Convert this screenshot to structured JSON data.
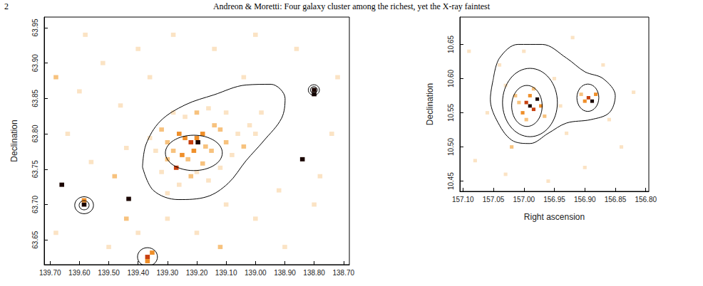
{
  "header": {
    "page": "2",
    "title": "Andreon & Moretti: Four galaxy cluster among the richest, yet the X-ray faintest"
  },
  "chart_data": [
    {
      "type": "heatmap",
      "ylabel": "Declination",
      "xlim": [
        139.72,
        138.68
      ],
      "ylim": [
        63.615,
        63.965
      ],
      "xticks": [
        {
          "value": 139.7,
          "label": "139.70"
        },
        {
          "value": 139.6,
          "label": "139.60"
        },
        {
          "value": 139.5,
          "label": "139.50"
        },
        {
          "value": 139.4,
          "label": "139.40"
        },
        {
          "value": 139.3,
          "label": "139.30"
        },
        {
          "value": 139.2,
          "label": "139.20"
        },
        {
          "value": 139.1,
          "label": "139.10"
        },
        {
          "value": 139.0,
          "label": "139.00"
        },
        {
          "value": 138.9,
          "label": "138.90"
        },
        {
          "value": 138.8,
          "label": "138.80"
        },
        {
          "value": 138.7,
          "label": "138.70"
        }
      ],
      "yticks": [
        63.65,
        {
          "value": 63.7,
          "label": "63.70"
        },
        63.75,
        {
          "value": 63.8,
          "label": "63.80"
        },
        63.85,
        {
          "value": 63.9,
          "label": "63.90"
        },
        63.95
      ],
      "grid": false,
      "zlim": [
        1,
        5
      ],
      "colors": [
        "#fbe3c4",
        "#f7c27e",
        "#ef8f2a",
        "#c8400e",
        "#1a0500"
      ],
      "cell_size": [
        0.016,
        0.006
      ],
      "cells": [
        [
          139.26,
          63.8,
          3
        ],
        [
          139.24,
          63.794,
          3
        ],
        [
          139.22,
          63.788,
          4
        ],
        [
          139.2,
          63.794,
          3
        ],
        [
          139.18,
          63.8,
          3
        ],
        [
          139.196,
          63.788,
          5
        ],
        [
          139.28,
          63.776,
          2
        ],
        [
          139.25,
          63.77,
          3
        ],
        [
          139.23,
          63.764,
          2
        ],
        [
          139.21,
          63.776,
          3
        ],
        [
          139.17,
          63.782,
          2
        ],
        [
          139.15,
          63.776,
          2
        ],
        [
          139.27,
          63.752,
          4
        ],
        [
          139.3,
          63.788,
          2
        ],
        [
          139.32,
          63.806,
          2
        ],
        [
          139.12,
          63.806,
          2
        ],
        [
          139.1,
          63.788,
          2
        ],
        [
          139.14,
          63.812,
          2
        ],
        [
          139.3,
          63.764,
          2
        ],
        [
          139.34,
          63.776,
          1
        ],
        [
          139.36,
          63.794,
          1
        ],
        [
          139.08,
          63.77,
          1
        ],
        [
          139.06,
          63.8,
          1
        ],
        [
          139.04,
          63.782,
          2
        ],
        [
          139.18,
          63.758,
          2
        ],
        [
          139.2,
          63.746,
          1
        ],
        [
          139.22,
          63.74,
          2
        ],
        [
          139.16,
          63.734,
          1
        ],
        [
          139.24,
          63.824,
          1
        ],
        [
          139.2,
          63.83,
          2
        ],
        [
          139.16,
          63.836,
          1
        ],
        [
          139.1,
          63.83,
          1
        ],
        [
          139.02,
          63.812,
          1
        ],
        [
          139.0,
          63.8,
          1
        ],
        [
          138.98,
          63.83,
          1
        ],
        [
          139.28,
          63.83,
          1
        ],
        [
          139.32,
          63.746,
          1
        ],
        [
          139.12,
          63.752,
          1
        ],
        [
          139.26,
          63.728,
          1
        ],
        [
          139.3,
          63.716,
          1
        ],
        [
          139.584,
          63.7,
          5
        ],
        [
          139.584,
          63.706,
          3
        ],
        [
          138.8,
          63.862,
          5
        ],
        [
          138.8,
          63.856,
          5
        ],
        [
          139.368,
          63.626,
          4
        ],
        [
          139.352,
          63.632,
          3
        ],
        [
          139.368,
          63.62,
          3
        ],
        [
          139.432,
          63.708,
          5
        ],
        [
          139.66,
          63.728,
          5
        ],
        [
          138.84,
          63.764,
          5
        ],
        [
          139.44,
          63.68,
          2
        ],
        [
          139.6,
          63.86,
          1
        ],
        [
          139.52,
          63.9,
          1
        ],
        [
          139.46,
          63.84,
          1
        ],
        [
          139.64,
          63.8,
          1
        ],
        [
          139.56,
          63.76,
          1
        ],
        [
          139.48,
          63.74,
          2
        ],
        [
          139.4,
          63.66,
          1
        ],
        [
          139.3,
          63.68,
          1
        ],
        [
          139.2,
          63.66,
          1
        ],
        [
          139.1,
          63.7,
          1
        ],
        [
          139.0,
          63.68,
          1
        ],
        [
          138.92,
          63.72,
          1
        ],
        [
          138.8,
          63.7,
          1
        ],
        [
          138.74,
          63.8,
          1
        ],
        [
          138.72,
          63.88,
          1
        ],
        [
          138.86,
          63.92,
          1
        ],
        [
          139.0,
          63.94,
          1
        ],
        [
          139.14,
          63.92,
          1
        ],
        [
          139.28,
          63.94,
          1
        ],
        [
          139.4,
          63.92,
          1
        ],
        [
          139.58,
          63.94,
          1
        ],
        [
          139.68,
          63.66,
          1
        ],
        [
          139.5,
          63.64,
          1
        ],
        [
          138.9,
          63.64,
          1
        ],
        [
          139.04,
          63.88,
          1
        ],
        [
          139.36,
          63.88,
          1
        ],
        [
          139.68,
          63.88,
          2
        ],
        [
          139.44,
          63.78,
          1
        ],
        [
          138.78,
          63.74,
          1
        ],
        [
          139.12,
          63.64,
          2
        ]
      ],
      "contours": [
        {
          "x": [
            139.385,
            139.373,
            139.324,
            139.239,
            139.142,
            139.032,
            138.947,
            138.899,
            138.911,
            138.972,
            139.032,
            139.093,
            139.166,
            139.263,
            139.348,
            139.385
          ],
          "y": [
            63.753,
            63.785,
            63.818,
            63.841,
            63.855,
            63.869,
            63.87,
            63.85,
            63.822,
            63.79,
            63.762,
            63.73,
            63.711,
            63.707,
            63.72,
            63.753
          ]
        }
      ],
      "ellipses": [
        {
          "x": 139.21,
          "y": 63.773,
          "rx": 0.097,
          "ry": 0.025
        },
        {
          "x": 139.584,
          "y": 63.699,
          "rx": 0.032,
          "ry": 0.012
        },
        {
          "x": 139.584,
          "y": 63.699,
          "rx": 0.017,
          "ry": 0.0065
        },
        {
          "x": 138.801,
          "y": 63.862,
          "rx": 0.019,
          "ry": 0.0074
        },
        {
          "x": 138.801,
          "y": 63.862,
          "rx": 0.012,
          "ry": 0.0046
        },
        {
          "x": 139.368,
          "y": 63.626,
          "rx": 0.034,
          "ry": 0.013
        }
      ]
    },
    {
      "type": "heatmap",
      "xlabel": "Right ascension",
      "ylabel": "Declination",
      "xlim": [
        157.105,
        156.795
      ],
      "ylim": [
        10.435,
        10.69
      ],
      "xticks": [
        {
          "value": 157.1,
          "label": "157.10"
        },
        157.05,
        {
          "value": 157.0,
          "label": "157.00"
        },
        156.95,
        {
          "value": 156.9,
          "label": "156.90"
        },
        156.85,
        {
          "value": 156.8,
          "label": "156.80"
        }
      ],
      "yticks": [
        10.45,
        {
          "value": 10.5,
          "label": "10.50"
        },
        10.55,
        {
          "value": 10.6,
          "label": "10.60"
        },
        10.65
      ],
      "grid": false,
      "zlim": [
        1,
        5
      ],
      "colors": [
        "#fbe3c4",
        "#f7c27e",
        "#ef8f2a",
        "#c8400e",
        "#1a0500"
      ],
      "cell_size": [
        0.006,
        0.005
      ],
      "cells": [
        [
          156.99,
          10.56,
          5
        ],
        [
          156.996,
          10.565,
          4
        ],
        [
          156.984,
          10.555,
          4
        ],
        [
          156.978,
          10.57,
          5
        ],
        [
          156.99,
          10.575,
          3
        ],
        [
          157.002,
          10.55,
          3
        ],
        [
          156.972,
          10.56,
          3
        ],
        [
          157.008,
          10.565,
          2
        ],
        [
          156.984,
          10.585,
          2
        ],
        [
          157.014,
          10.575,
          2
        ],
        [
          156.966,
          10.545,
          2
        ],
        [
          156.996,
          10.54,
          2
        ],
        [
          156.894,
          10.572,
          4
        ],
        [
          156.888,
          10.567,
          5
        ],
        [
          156.9,
          10.567,
          3
        ],
        [
          156.882,
          10.577,
          3
        ],
        [
          156.906,
          10.577,
          2
        ],
        [
          157.04,
          10.62,
          1
        ],
        [
          157.06,
          10.55,
          1
        ],
        [
          157.08,
          10.48,
          1
        ],
        [
          157.02,
          10.5,
          2
        ],
        [
          156.95,
          10.6,
          1
        ],
        [
          156.93,
          10.52,
          1
        ],
        [
          156.87,
          10.62,
          1
        ],
        [
          156.84,
          10.5,
          1
        ],
        [
          156.82,
          10.58,
          1
        ],
        [
          157.09,
          10.64,
          1
        ],
        [
          156.96,
          10.45,
          1
        ],
        [
          156.9,
          10.47,
          1
        ],
        [
          157.03,
          10.46,
          1
        ],
        [
          156.92,
          10.66,
          1
        ],
        [
          157.0,
          10.64,
          1
        ],
        [
          156.94,
          10.56,
          1
        ],
        [
          157.03,
          10.59,
          1
        ],
        [
          156.86,
          10.54,
          1
        ]
      ],
      "contours": [
        {
          "x": [
            157.05,
            157.04,
            157.01,
            156.97,
            156.93,
            156.9,
            156.87,
            156.85,
            156.86,
            156.89,
            156.93,
            156.96,
            156.99,
            157.02,
            157.045,
            157.055,
            157.05
          ],
          "y": [
            10.6,
            10.63,
            10.65,
            10.65,
            10.63,
            10.61,
            10.6,
            10.575,
            10.55,
            10.54,
            10.535,
            10.52,
            10.505,
            10.51,
            10.54,
            10.57,
            10.6
          ]
        }
      ],
      "ellipses": [
        {
          "x": 156.99,
          "y": 10.565,
          "rx": 0.045,
          "ry": 0.05
        },
        {
          "x": 156.995,
          "y": 10.56,
          "rx": 0.025,
          "ry": 0.03
        },
        {
          "x": 156.895,
          "y": 10.572,
          "rx": 0.018,
          "ry": 0.02
        }
      ]
    }
  ]
}
